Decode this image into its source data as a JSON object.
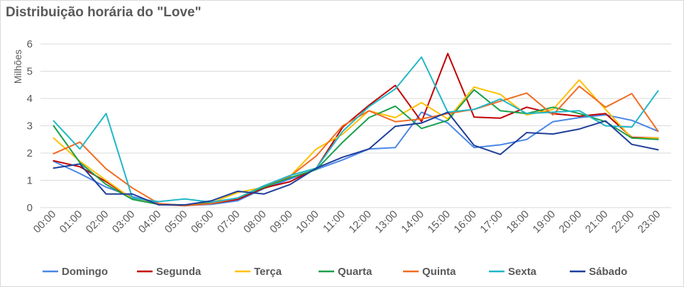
{
  "chart_data": {
    "type": "line",
    "title": "Distribuição horária do \"Love\"",
    "xlabel": "",
    "ylabel": "Milhões",
    "ylim": [
      0,
      6
    ],
    "yticks": [
      "0",
      "1",
      "2",
      "3",
      "4",
      "5",
      "6"
    ],
    "grid": true,
    "legend": "bottom",
    "categories": [
      "00:00",
      "01:00",
      "02:00",
      "03:00",
      "04:00",
      "05:00",
      "06:00",
      "07:00",
      "08:00",
      "09:00",
      "10:00",
      "11:00",
      "12:00",
      "13:00",
      "14:00",
      "15:00",
      "16:00",
      "17:00",
      "18:00",
      "19:00",
      "20:00",
      "21:00",
      "22:00",
      "23:00"
    ],
    "series": [
      {
        "name": "Domingo",
        "color": "#4a86e8",
        "values": [
          1.7,
          1.25,
          0.75,
          0.4,
          0.15,
          0.08,
          0.12,
          0.25,
          0.7,
          1.05,
          1.4,
          1.75,
          2.15,
          2.2,
          3.5,
          3.1,
          2.2,
          2.3,
          2.5,
          3.15,
          3.3,
          3.4,
          3.2,
          2.8
        ]
      },
      {
        "name": "Segunda",
        "color": "#c00000",
        "values": [
          1.72,
          1.5,
          0.95,
          0.32,
          0.12,
          0.07,
          0.15,
          0.3,
          0.72,
          0.95,
          1.45,
          2.95,
          3.75,
          4.48,
          3.15,
          5.65,
          3.32,
          3.28,
          3.68,
          3.45,
          3.35,
          3.45,
          2.58,
          2.55
        ]
      },
      {
        "name": "Terça",
        "color": "#ffc000",
        "values": [
          2.55,
          1.7,
          1.0,
          0.32,
          0.12,
          0.08,
          0.18,
          0.55,
          0.75,
          1.15,
          2.15,
          2.7,
          3.55,
          3.3,
          3.85,
          3.25,
          4.42,
          4.15,
          3.4,
          3.6,
          4.68,
          3.6,
          2.55,
          2.55
        ]
      },
      {
        "name": "Quarta",
        "color": "#1aa04b",
        "values": [
          3.0,
          1.65,
          0.85,
          0.3,
          0.12,
          0.1,
          0.18,
          0.35,
          0.75,
          1.1,
          1.4,
          2.4,
          3.3,
          3.72,
          2.9,
          3.2,
          4.32,
          3.55,
          3.45,
          3.68,
          3.45,
          3.15,
          2.55,
          2.5
        ]
      },
      {
        "name": "Quinta",
        "color": "#f26c21",
        "values": [
          1.98,
          2.4,
          1.42,
          0.72,
          0.15,
          0.08,
          0.15,
          0.35,
          0.8,
          1.15,
          1.9,
          3.0,
          3.55,
          3.15,
          3.25,
          3.45,
          3.6,
          3.9,
          4.2,
          3.4,
          4.45,
          3.68,
          4.18,
          2.8
        ]
      },
      {
        "name": "Sexta",
        "color": "#21b7c7",
        "values": [
          3.18,
          2.15,
          3.45,
          0.35,
          0.22,
          0.32,
          0.2,
          0.35,
          0.8,
          1.18,
          1.45,
          2.8,
          3.7,
          4.35,
          5.52,
          3.5,
          3.6,
          3.98,
          3.45,
          3.5,
          3.55,
          3.0,
          2.95,
          4.28
        ]
      },
      {
        "name": "Sábado",
        "color": "#1f3f9a",
        "values": [
          1.45,
          1.6,
          0.5,
          0.5,
          0.1,
          0.1,
          0.25,
          0.6,
          0.5,
          0.85,
          1.45,
          1.85,
          2.15,
          2.98,
          3.1,
          3.5,
          2.28,
          1.95,
          2.75,
          2.7,
          2.88,
          3.18,
          2.32,
          2.12
        ]
      }
    ]
  }
}
